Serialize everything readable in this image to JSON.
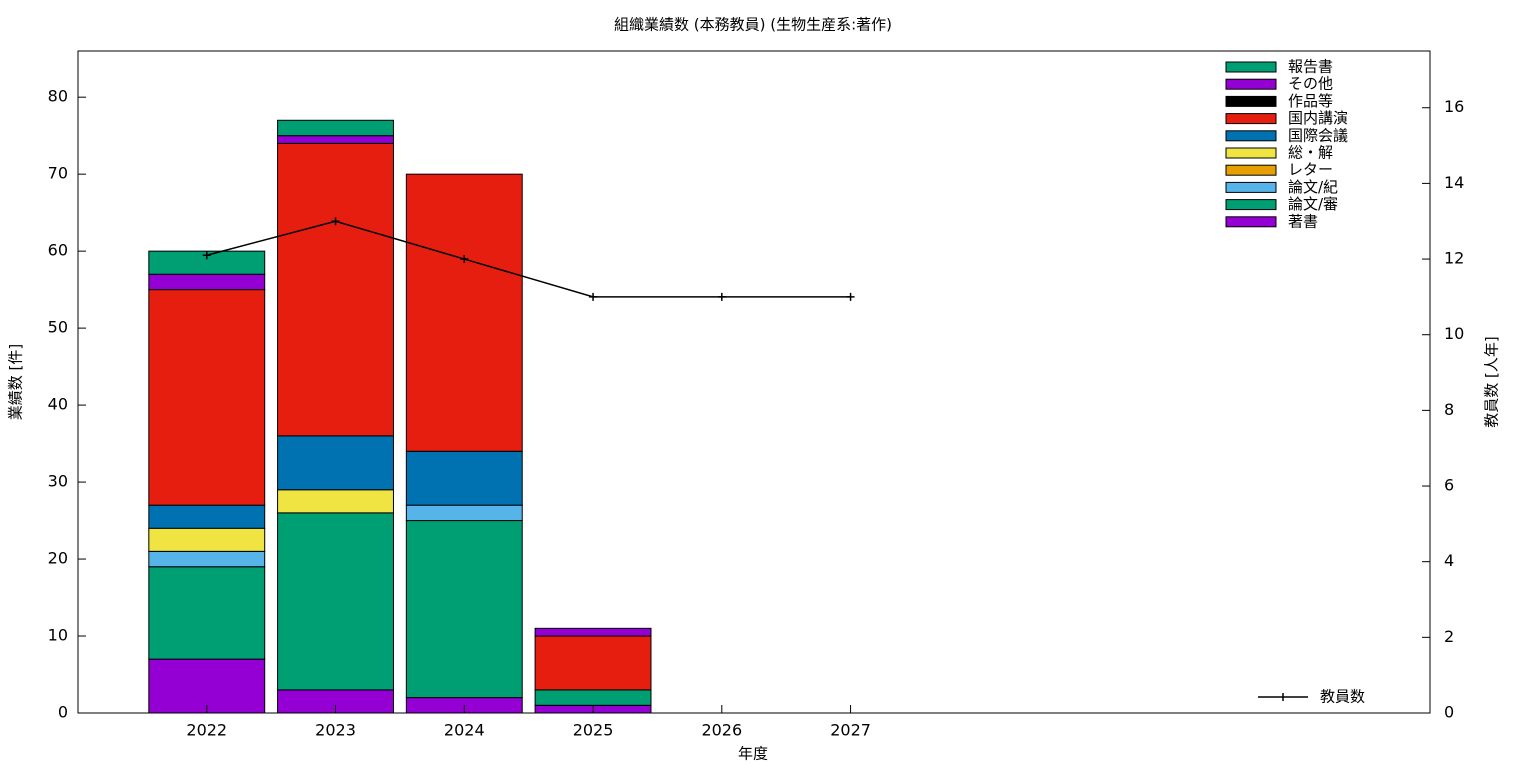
{
  "chart_data": {
    "type": "bar",
    "title": "組織業績数 (本務教員) (生物生産系:著作)",
    "xlabel": "年度",
    "ylabel": "業績数 [件]",
    "y2label": "教員数 [人年]",
    "x": [
      2022,
      2023,
      2024,
      2025,
      2026,
      2027
    ],
    "xlim": [
      2021,
      2031.5
    ],
    "xticks": [
      2022,
      2023,
      2024,
      2025,
      2026,
      2027
    ],
    "ylim": [
      0,
      86
    ],
    "yticks": [
      0,
      10,
      20,
      30,
      40,
      50,
      60,
      70,
      80
    ],
    "y2lim": [
      0,
      17.5
    ],
    "y2ticks": [
      0,
      2,
      4,
      6,
      8,
      10,
      12,
      14,
      16
    ],
    "stacked": true,
    "series": [
      {
        "name": "著書",
        "color": "#9400d3",
        "values": [
          7,
          3,
          2,
          1,
          0,
          0
        ]
      },
      {
        "name": "論文/審",
        "color": "#009e73",
        "values": [
          12,
          23,
          23,
          2,
          0,
          0
        ]
      },
      {
        "name": "論文/紀",
        "color": "#56b4e9",
        "values": [
          2,
          0,
          2,
          0,
          0,
          0
        ]
      },
      {
        "name": "レター",
        "color": "#e69f00",
        "values": [
          0,
          0,
          0,
          0,
          0,
          0
        ]
      },
      {
        "name": "総・解",
        "color": "#f0e442",
        "values": [
          3,
          3,
          0,
          0,
          0,
          0
        ]
      },
      {
        "name": "国際会議",
        "color": "#0072b2",
        "values": [
          3,
          7,
          7,
          0,
          0,
          0
        ]
      },
      {
        "name": "国内講演",
        "color": "#e51e10",
        "values": [
          28,
          38,
          36,
          7,
          0,
          0
        ]
      },
      {
        "name": "作品等",
        "color": "#000000",
        "values": [
          0,
          0,
          0,
          0,
          0,
          0
        ]
      },
      {
        "name": "その他",
        "color": "#9400d3",
        "values": [
          2,
          1,
          0,
          1,
          0,
          0
        ]
      },
      {
        "name": "報告書",
        "color": "#009e73",
        "values": [
          3,
          2,
          0,
          0,
          0,
          0
        ]
      },
      {
        "name": "教員数",
        "color": "#000000",
        "type": "line",
        "axis": "y2",
        "values": [
          12.1,
          13,
          12,
          11,
          11,
          11
        ]
      }
    ]
  }
}
